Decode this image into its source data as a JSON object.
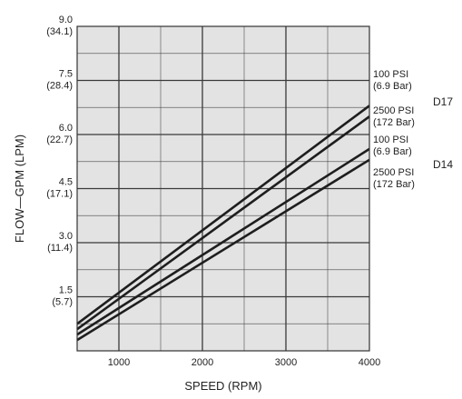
{
  "chart_data": {
    "type": "line",
    "xlabel": "SPEED (RPM)",
    "ylabel": "FLOW—GPM (LPM)",
    "xlim": [
      500,
      4000
    ],
    "ylim": [
      0,
      9.0
    ],
    "grid": true,
    "plot_background": "#e3e3e3",
    "grid_color": "#3a3a3a",
    "line_color": "#1e1e1e",
    "x_ticks": [
      {
        "value": 1000,
        "label": "1000"
      },
      {
        "value": 2000,
        "label": "2000"
      },
      {
        "value": 3000,
        "label": "3000"
      },
      {
        "value": 4000,
        "label": "4000"
      }
    ],
    "y_ticks": [
      {
        "value": 9.0,
        "label": "9.0",
        "sub": "(34.1)"
      },
      {
        "value": 7.5,
        "label": "7.5",
        "sub": "(28.4)"
      },
      {
        "value": 6.0,
        "label": "6.0",
        "sub": "(22.7)"
      },
      {
        "value": 4.5,
        "label": "4.5",
        "sub": "(17.1)"
      },
      {
        "value": 3.0,
        "label": "3.0",
        "sub": "(11.4)"
      },
      {
        "value": 1.5,
        "label": "1.5",
        "sub": "(5.7)"
      }
    ],
    "series": [
      {
        "label_1": "100 PSI",
        "label_2": "(6.9 Bar)",
        "x": [
          500,
          4000
        ],
        "y": [
          0.75,
          6.8
        ]
      },
      {
        "label_1": "2500 PSI",
        "label_2": "(172 Bar)",
        "x": [
          500,
          4000
        ],
        "y": [
          0.6,
          6.5
        ]
      },
      {
        "label_1": "100 PSI",
        "label_2": "(6.9 Bar)",
        "x": [
          500,
          4000
        ],
        "y": [
          0.45,
          5.6
        ]
      },
      {
        "label_1": "2500 PSI",
        "label_2": "(172 Bar)",
        "x": [
          500,
          4000
        ],
        "y": [
          0.3,
          5.3
        ]
      }
    ],
    "groups": [
      {
        "label": "D17"
      },
      {
        "label": "D14"
      }
    ]
  }
}
